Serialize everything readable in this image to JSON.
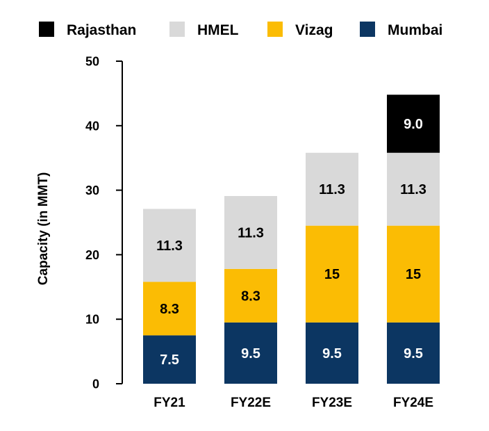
{
  "chart_data": {
    "type": "bar",
    "stacked": true,
    "title": "",
    "xlabel": "",
    "ylabel": "Capacity (in MMT)",
    "ylim": [
      0,
      50
    ],
    "yticks": [
      0,
      10,
      20,
      30,
      40,
      50
    ],
    "grid": false,
    "legend_position": "top",
    "categories": [
      "FY21",
      "FY22E",
      "FY23E",
      "FY24E"
    ],
    "series": [
      {
        "name": "Mumbai",
        "color": "#0c3662",
        "label_color": "#ffffff",
        "values": [
          7.5,
          9.5,
          9.5,
          9.5
        ],
        "labels": [
          "7.5",
          "9.5",
          "9.5",
          "9.5"
        ]
      },
      {
        "name": "Vizag",
        "color": "#fbbc04",
        "label_color": "#000000",
        "values": [
          8.3,
          8.3,
          15,
          15
        ],
        "labels": [
          "8.3",
          "8.3",
          "15",
          "15"
        ]
      },
      {
        "name": "HMEL",
        "color": "#d9d9d9",
        "label_color": "#000000",
        "values": [
          11.3,
          11.3,
          11.3,
          11.3
        ],
        "labels": [
          "11.3",
          "11.3",
          "11.3",
          "11.3"
        ]
      },
      {
        "name": "Rajasthan",
        "color": "#000000",
        "label_color": "#ffffff",
        "values": [
          0,
          0,
          0,
          9.0
        ],
        "labels": [
          "",
          "",
          "",
          "9.0"
        ]
      }
    ],
    "legend_order": [
      "Rajasthan",
      "HMEL",
      "Vizag",
      "Mumbai"
    ]
  }
}
